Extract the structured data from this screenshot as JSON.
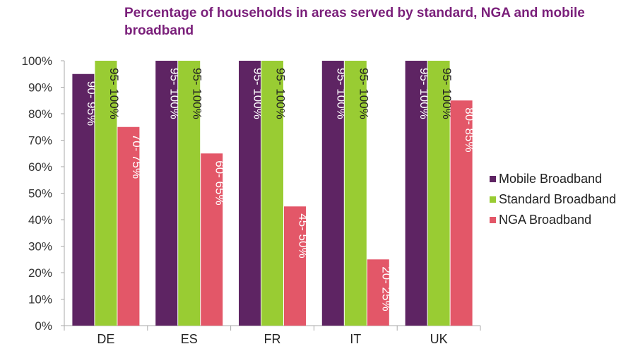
{
  "chart_data": {
    "type": "bar",
    "title": "Percentage of households in areas served by standard, NGA and mobile broadband",
    "xlabel": "",
    "ylabel": "",
    "ylim": [
      0,
      100
    ],
    "yticks": [
      "0%",
      "10%",
      "20%",
      "30%",
      "40%",
      "50%",
      "60%",
      "70%",
      "80%",
      "90%",
      "100%"
    ],
    "categories": [
      "DE",
      "ES",
      "FR",
      "IT",
      "UK"
    ],
    "series": [
      {
        "name": "Mobile Broadband",
        "color": "#5e2463",
        "label_color": "#ffffff",
        "values": [
          95,
          100,
          100,
          100,
          100
        ],
        "labels": [
          "90- 95%",
          "95- 100%",
          "95- 100%",
          "95- 100%",
          "95- 100%"
        ]
      },
      {
        "name": "Standard Broadband",
        "color": "#99cc33",
        "label_color": "#222222",
        "values": [
          100,
          100,
          100,
          100,
          100
        ],
        "labels": [
          "95- 100%",
          "95- 100%",
          "95- 100%",
          "95- 100%",
          "95- 100%"
        ]
      },
      {
        "name": "NGA Broadband",
        "color": "#e35768",
        "label_color": "#ffffff",
        "values": [
          75,
          65,
          45,
          25,
          85
        ],
        "labels": [
          "70- 75%",
          "60- 65%",
          "45- 50%",
          "20- 25%",
          "80- 85%"
        ]
      }
    ],
    "legend_position": "right",
    "grid": false
  }
}
